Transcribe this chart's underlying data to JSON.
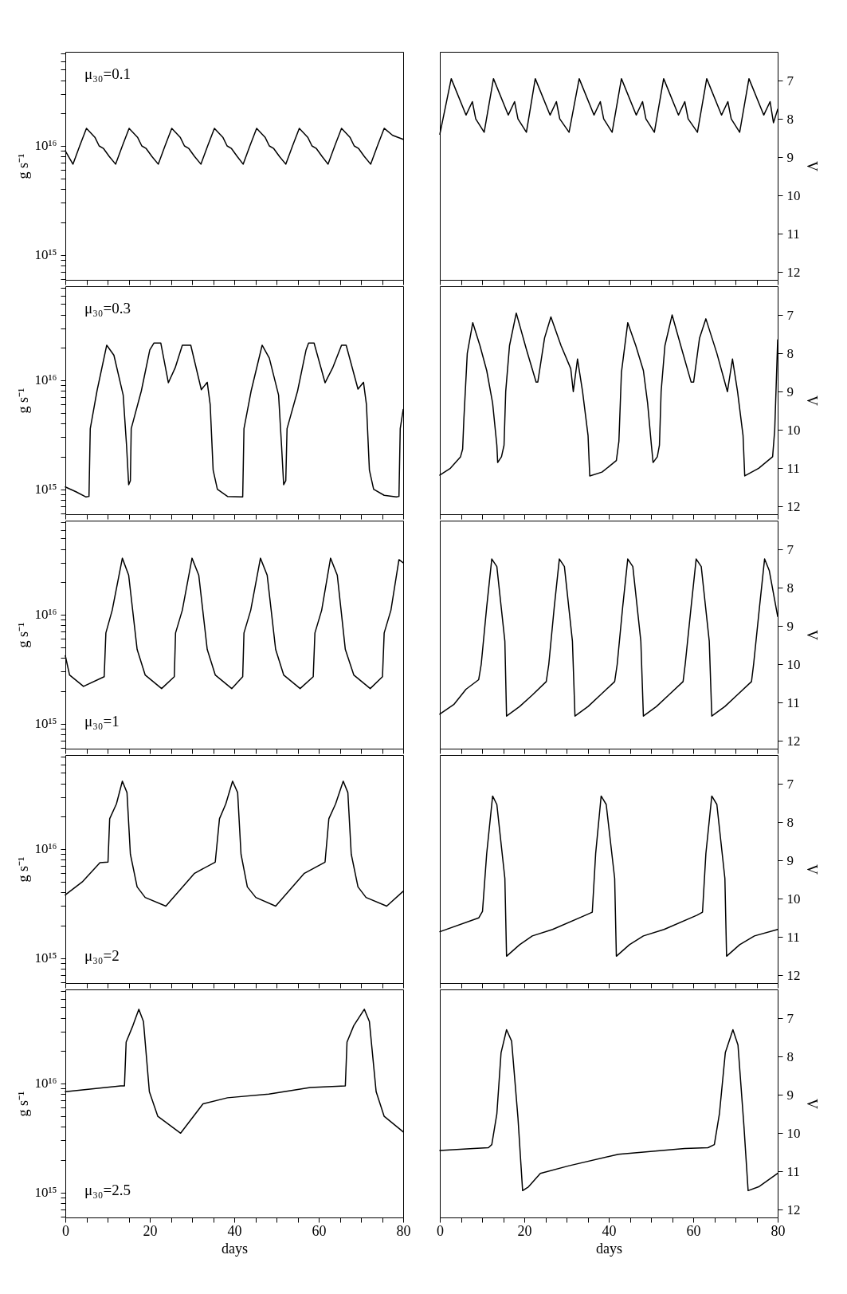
{
  "chart_data": [
    {
      "type": "line",
      "ylabel": "g s⁻¹",
      "log": true,
      "tick_labels": "y",
      "annotations": [
        "μ₃₀=0.1"
      ],
      "xlim": [
        0,
        80
      ],
      "xticks": [
        0,
        {
          "value": 5,
          "label": null
        },
        {
          "value": 10,
          "label": null
        },
        {
          "value": 15,
          "label": null
        },
        20,
        {
          "value": 25,
          "label": null
        },
        {
          "value": 30,
          "label": null
        },
        {
          "value": 35,
          "label": null
        },
        40,
        {
          "value": 45,
          "label": null
        },
        {
          "value": 50,
          "label": null
        },
        {
          "value": 55,
          "label": null
        },
        60,
        {
          "value": 65,
          "label": null
        },
        {
          "value": 70,
          "label": null
        },
        {
          "value": 75,
          "label": null
        },
        80
      ],
      "ylim": [
        590000000000000.0,
        7.3e+16
      ],
      "yticks": [
        {
          "value": 600000000000000.0,
          "label": null
        },
        {
          "value": 700000000000000.0,
          "label": null
        },
        {
          "value": 800000000000000.0,
          "label": null
        },
        {
          "value": 900000000000000.0,
          "label": null
        },
        {
          "value": 1000000000000000.0,
          "label": "10¹⁵"
        },
        {
          "value": 2000000000000000.0,
          "label": null
        },
        {
          "value": 3000000000000000.0,
          "label": null
        },
        {
          "value": 4000000000000000.0,
          "label": null
        },
        {
          "value": 5000000000000000.0,
          "label": null
        },
        {
          "value": 6000000000000000.0,
          "label": null
        },
        {
          "value": 7000000000000000.0,
          "label": null
        },
        {
          "value": 8000000000000000.0,
          "label": null
        },
        {
          "value": 9000000000000000.0,
          "label": null
        },
        {
          "value": 1e+16,
          "label": "10¹⁶"
        },
        {
          "value": 2e+16,
          "label": null
        },
        {
          "value": 3e+16,
          "label": null
        },
        {
          "value": 4e+16,
          "label": null
        },
        {
          "value": 5e+16,
          "label": null
        },
        {
          "value": 6e+16,
          "label": null
        },
        {
          "value": 7e+16,
          "label": null
        }
      ],
      "x": [
        0,
        1.8,
        3.4,
        5,
        7,
        8,
        9,
        10.4,
        11.9,
        13.5,
        15.1,
        17.1,
        18.1,
        19.1,
        20.5,
        22,
        23.6,
        25.2,
        27.2,
        28.2,
        29.2,
        30.6,
        32.1,
        33.7,
        35.3,
        37.3,
        38.3,
        39.3,
        40.7,
        42.1,
        43.7,
        45.3,
        47.3,
        48.3,
        49.3,
        50.7,
        52.2,
        53.8,
        55.4,
        57.4,
        58.4,
        59.4,
        60.8,
        62.2,
        63.8,
        65.4,
        67.4,
        68.4,
        69.4,
        70.8,
        72.3,
        73.9,
        75.5,
        77.5,
        80
      ],
      "series": [
        {
          "color": "#000000",
          "values": [
            9000000000000000.0,
            6800000000000000.0,
            1e+16,
            1.45e+16,
            1.2e+16,
            1e+16,
            9500000000000000.0,
            8000000000000000.0,
            6800000000000000.0,
            1e+16,
            1.45e+16,
            1.2e+16,
            1e+16,
            9500000000000000.0,
            8000000000000000.0,
            6800000000000000.0,
            1e+16,
            1.45e+16,
            1.2e+16,
            1e+16,
            9500000000000000.0,
            8000000000000000.0,
            6800000000000000.0,
            1e+16,
            1.45e+16,
            1.2e+16,
            1e+16,
            9500000000000000.0,
            8000000000000000.0,
            6800000000000000.0,
            1e+16,
            1.45e+16,
            1.2e+16,
            1e+16,
            9500000000000000.0,
            8000000000000000.0,
            6800000000000000.0,
            1e+16,
            1.45e+16,
            1.2e+16,
            1e+16,
            9500000000000000.0,
            8000000000000000.0,
            6800000000000000.0,
            1e+16,
            1.45e+16,
            1.2e+16,
            1e+16,
            9500000000000000.0,
            8000000000000000.0,
            6800000000000000.0,
            1e+16,
            1.45e+16,
            1.25e+16,
            1.15e+16
          ]
        }
      ]
    },
    {
      "type": "line",
      "y2label": "V",
      "tick_labels": "y",
      "xlim": [
        0,
        80
      ],
      "xticks": [
        0,
        {
          "value": 5,
          "label": null
        },
        {
          "value": 10,
          "label": null
        },
        {
          "value": 15,
          "label": null
        },
        20,
        {
          "value": 25,
          "label": null
        },
        {
          "value": 30,
          "label": null
        },
        {
          "value": 35,
          "label": null
        },
        40,
        {
          "value": 45,
          "label": null
        },
        {
          "value": 50,
          "label": null
        },
        {
          "value": 55,
          "label": null
        },
        60,
        {
          "value": 65,
          "label": null
        },
        {
          "value": 70,
          "label": null
        },
        {
          "value": 75,
          "label": null
        },
        80
      ],
      "y2lim": [
        12.2,
        6.25
      ],
      "y2ticks": [
        7,
        8,
        9,
        10,
        11,
        12
      ],
      "x": [
        0,
        2.7,
        6.2,
        7.7,
        8.5,
        10.5,
        12.7,
        16.2,
        17.7,
        18.5,
        20.5,
        22.6,
        26.1,
        27.6,
        28.4,
        30.6,
        33,
        36.5,
        38,
        38.8,
        40.8,
        43,
        46.5,
        48,
        48.8,
        50.8,
        53,
        56.5,
        58,
        58.8,
        61,
        63.2,
        66.7,
        68.2,
        69,
        71,
        73.2,
        76.7,
        78.2,
        79,
        80
      ],
      "series": [
        {
          "color": "#000000",
          "axis": "y2",
          "values": [
            8.4,
            6.95,
            7.9,
            7.55,
            8.0,
            8.35,
            6.95,
            7.9,
            7.55,
            8.0,
            8.35,
            6.95,
            7.9,
            7.55,
            8.0,
            8.35,
            6.95,
            7.9,
            7.55,
            8.0,
            8.35,
            6.95,
            7.9,
            7.55,
            8.0,
            8.35,
            6.95,
            7.9,
            7.55,
            8.0,
            8.35,
            6.95,
            7.9,
            7.55,
            8.0,
            8.35,
            6.95,
            7.9,
            7.55,
            8.1,
            7.75
          ]
        }
      ]
    },
    {
      "type": "line",
      "ylabel": "g s⁻¹",
      "log": true,
      "tick_labels": "y",
      "annotations": [
        "μ₃₀=0.3"
      ],
      "xlim": [
        0,
        80
      ],
      "xticks": [
        0,
        {
          "value": 5,
          "label": null
        },
        {
          "value": 10,
          "label": null
        },
        {
          "value": 15,
          "label": null
        },
        20,
        {
          "value": 25,
          "label": null
        },
        {
          "value": 30,
          "label": null
        },
        {
          "value": 35,
          "label": null
        },
        40,
        {
          "value": 45,
          "label": null
        },
        {
          "value": 50,
          "label": null
        },
        {
          "value": 55,
          "label": null
        },
        60,
        {
          "value": 65,
          "label": null
        },
        {
          "value": 70,
          "label": null
        },
        {
          "value": 75,
          "label": null
        },
        80
      ],
      "ylim": [
        590000000000000.0,
        7.3e+16
      ],
      "yticks": [
        {
          "value": 600000000000000.0,
          "label": null
        },
        {
          "value": 700000000000000.0,
          "label": null
        },
        {
          "value": 800000000000000.0,
          "label": null
        },
        {
          "value": 900000000000000.0,
          "label": null
        },
        {
          "value": 1000000000000000.0,
          "label": "10¹⁵"
        },
        {
          "value": 2000000000000000.0,
          "label": null
        },
        {
          "value": 3000000000000000.0,
          "label": null
        },
        {
          "value": 4000000000000000.0,
          "label": null
        },
        {
          "value": 5000000000000000.0,
          "label": null
        },
        {
          "value": 6000000000000000.0,
          "label": null
        },
        {
          "value": 7000000000000000.0,
          "label": null
        },
        {
          "value": 8000000000000000.0,
          "label": null
        },
        {
          "value": 9000000000000000.0,
          "label": null
        },
        {
          "value": 1e+16,
          "label": "10¹⁶"
        },
        {
          "value": 2e+16,
          "label": null
        },
        {
          "value": 3e+16,
          "label": null
        },
        {
          "value": 4e+16,
          "label": null
        },
        {
          "value": 5e+16,
          "label": null
        },
        {
          "value": 6e+16,
          "label": null
        },
        {
          "value": 7e+16,
          "label": null
        }
      ],
      "x": [
        0,
        2.5,
        4.9,
        5.6,
        5.9,
        7.5,
        9.8,
        11.5,
        13.7,
        14.5,
        15,
        15.4,
        15.6,
        18,
        20,
        21,
        22.6,
        24.4,
        26,
        27.7,
        29.7,
        32.2,
        33.6,
        34.3,
        35,
        36,
        38.4,
        42,
        42.3,
        44,
        46.6,
        48.3,
        50.5,
        51.2,
        51.7,
        52.2,
        52.5,
        55,
        57,
        57.6,
        58.9,
        61.5,
        63.3,
        65.4,
        66.5,
        69.3,
        70.6,
        71.3,
        72,
        73,
        75.5,
        78.4,
        79,
        79.3,
        80
      ],
      "series": [
        {
          "color": "#000000",
          "values": [
            1050000000000000.0,
            950000000000000.0,
            850000000000000.0,
            860000000000000.0,
            3600000000000000.0,
            8000000000000000.0,
            2.1e+16,
            1.7e+16,
            7300000000000000.0,
            2500000000000000.0,
            1100000000000000.0,
            1200000000000000.0,
            3600000000000000.0,
            8000000000000000.0,
            1.9e+16,
            2.2e+16,
            2.2e+16,
            9500000000000000.0,
            1.3e+16,
            2.1e+16,
            2.1e+16,
            8200000000000000.0,
            9600000000000000.0,
            6000000000000000.0,
            1500000000000000.0,
            1000000000000000.0,
            860000000000000.0,
            850000000000000.0,
            3600000000000000.0,
            8000000000000000.0,
            2.1e+16,
            1.6e+16,
            7300000000000000.0,
            2500000000000000.0,
            1100000000000000.0,
            1200000000000000.0,
            3600000000000000.0,
            8000000000000000.0,
            1.9e+16,
            2.2e+16,
            2.2e+16,
            9500000000000000.0,
            1.3e+16,
            2.1e+16,
            2.1e+16,
            8300000000000000.0,
            9600000000000000.0,
            6000000000000000.0,
            1500000000000000.0,
            1000000000000000.0,
            880000000000000.0,
            850000000000000.0,
            860000000000000.0,
            3600000000000000.0,
            5400000000000000.0
          ]
        }
      ]
    },
    {
      "type": "line",
      "y2label": "V",
      "tick_labels": "y",
      "xlim": [
        0,
        80
      ],
      "xticks": [
        0,
        {
          "value": 5,
          "label": null
        },
        {
          "value": 10,
          "label": null
        },
        {
          "value": 15,
          "label": null
        },
        20,
        {
          "value": 25,
          "label": null
        },
        {
          "value": 30,
          "label": null
        },
        {
          "value": 35,
          "label": null
        },
        40,
        {
          "value": 45,
          "label": null
        },
        {
          "value": 50,
          "label": null
        },
        {
          "value": 55,
          "label": null
        },
        60,
        {
          "value": 65,
          "label": null
        },
        {
          "value": 70,
          "label": null
        },
        {
          "value": 75,
          "label": null
        },
        80
      ],
      "y2lim": [
        12.2,
        6.25
      ],
      "y2ticks": [
        7,
        8,
        9,
        10,
        11,
        12
      ],
      "x": [
        0,
        2.5,
        4.9,
        5.4,
        5.7,
        6.5,
        7.8,
        9.5,
        11.1,
        12.5,
        13.5,
        13.7,
        14.6,
        15.2,
        15.6,
        16.5,
        18.1,
        20.5,
        22.8,
        23.2,
        24.8,
        26.3,
        28.7,
        31,
        31.6,
        32.6,
        33.8,
        35.1,
        35.5,
        38.4,
        41.8,
        42.4,
        43,
        44.5,
        46.4,
        48.2,
        49.2,
        50.1,
        50.5,
        51.5,
        52,
        52.4,
        53.3,
        55,
        57.3,
        59.5,
        60.1,
        61.5,
        63,
        65.6,
        68.1,
        69.3,
        70.5,
        71.8,
        72.2,
        75.5,
        78.8,
        79.3,
        80
      ],
      "series": [
        {
          "color": "#000000",
          "axis": "y2",
          "values": [
            11.18,
            11.0,
            10.7,
            10.5,
            9.7,
            8.0,
            7.2,
            7.8,
            8.45,
            9.3,
            10.4,
            10.85,
            10.7,
            10.4,
            9.0,
            7.8,
            6.95,
            7.9,
            8.75,
            8.75,
            7.6,
            7.05,
            7.8,
            8.4,
            9.0,
            8.15,
            9.0,
            10.15,
            11.2,
            11.1,
            10.8,
            10.3,
            8.5,
            7.2,
            7.8,
            8.45,
            9.3,
            10.4,
            10.85,
            10.7,
            10.4,
            9.0,
            7.8,
            7.0,
            7.9,
            8.75,
            8.75,
            7.6,
            7.1,
            8.0,
            9.0,
            8.15,
            9.0,
            10.15,
            11.2,
            11.0,
            10.7,
            10.0,
            7.65
          ]
        }
      ]
    },
    {
      "type": "line",
      "ylabel": "g s⁻¹",
      "log": true,
      "tick_labels": "y",
      "annotations": [
        "μ₃₀=1"
      ],
      "xlim": [
        0,
        80
      ],
      "xticks": [
        0,
        {
          "value": 5,
          "label": null
        },
        {
          "value": 10,
          "label": null
        },
        {
          "value": 15,
          "label": null
        },
        20,
        {
          "value": 25,
          "label": null
        },
        {
          "value": 30,
          "label": null
        },
        {
          "value": 35,
          "label": null
        },
        40,
        {
          "value": 45,
          "label": null
        },
        {
          "value": 50,
          "label": null
        },
        {
          "value": 55,
          "label": null
        },
        60,
        {
          "value": 65,
          "label": null
        },
        {
          "value": 70,
          "label": null
        },
        {
          "value": 75,
          "label": null
        },
        80
      ],
      "ylim": [
        590000000000000.0,
        7.3e+16
      ],
      "yticks": [
        {
          "value": 600000000000000.0,
          "label": null
        },
        {
          "value": 700000000000000.0,
          "label": null
        },
        {
          "value": 800000000000000.0,
          "label": null
        },
        {
          "value": 900000000000000.0,
          "label": null
        },
        {
          "value": 1000000000000000.0,
          "label": "10¹⁵"
        },
        {
          "value": 2000000000000000.0,
          "label": null
        },
        {
          "value": 3000000000000000.0,
          "label": null
        },
        {
          "value": 4000000000000000.0,
          "label": null
        },
        {
          "value": 5000000000000000.0,
          "label": null
        },
        {
          "value": 6000000000000000.0,
          "label": null
        },
        {
          "value": 7000000000000000.0,
          "label": null
        },
        {
          "value": 8000000000000000.0,
          "label": null
        },
        {
          "value": 9000000000000000.0,
          "label": null
        },
        {
          "value": 1e+16,
          "label": "10¹⁶"
        },
        {
          "value": 2e+16,
          "label": null
        },
        {
          "value": 3e+16,
          "label": null
        },
        {
          "value": 4e+16,
          "label": null
        },
        {
          "value": 5e+16,
          "label": null
        },
        {
          "value": 6e+16,
          "label": null
        },
        {
          "value": 7e+16,
          "label": null
        }
      ],
      "x": [
        0,
        1,
        4.3,
        9.2,
        9.6,
        11.1,
        13.5,
        15,
        17,
        18.9,
        22.8,
        25.8,
        26.1,
        27.7,
        30,
        31.6,
        33.6,
        35.5,
        39.4,
        42,
        42.3,
        43.9,
        46.2,
        47.8,
        49.8,
        51.7,
        55.6,
        58.7,
        59.1,
        60.7,
        62.8,
        64.4,
        66.3,
        68.3,
        72.2,
        75.1,
        75.5,
        77.1,
        79,
        80
      ],
      "series": [
        {
          "color": "#000000",
          "values": [
            4200000000000000.0,
            2800000000000000.0,
            2200000000000000.0,
            2700000000000000.0,
            6800000000000000.0,
            1.1e+16,
            3.3e+16,
            2.3e+16,
            4800000000000000.0,
            2800000000000000.0,
            2100000000000000.0,
            2700000000000000.0,
            6800000000000000.0,
            1.1e+16,
            3.3e+16,
            2.3e+16,
            4800000000000000.0,
            2800000000000000.0,
            2100000000000000.0,
            2700000000000000.0,
            6800000000000000.0,
            1.1e+16,
            3.3e+16,
            2.3e+16,
            4800000000000000.0,
            2800000000000000.0,
            2100000000000000.0,
            2700000000000000.0,
            6800000000000000.0,
            1.1e+16,
            3.3e+16,
            2.3e+16,
            4800000000000000.0,
            2800000000000000.0,
            2100000000000000.0,
            2700000000000000.0,
            6800000000000000.0,
            1.1e+16,
            3.2e+16,
            3e+16
          ]
        }
      ]
    },
    {
      "type": "line",
      "y2label": "V",
      "tick_labels": "y",
      "xlim": [
        0,
        80
      ],
      "xticks": [
        0,
        {
          "value": 5,
          "label": null
        },
        {
          "value": 10,
          "label": null
        },
        {
          "value": 15,
          "label": null
        },
        20,
        {
          "value": 25,
          "label": null
        },
        {
          "value": 30,
          "label": null
        },
        {
          "value": 35,
          "label": null
        },
        40,
        {
          "value": 45,
          "label": null
        },
        {
          "value": 50,
          "label": null
        },
        {
          "value": 55,
          "label": null
        },
        60,
        {
          "value": 65,
          "label": null
        },
        {
          "value": 70,
          "label": null
        },
        {
          "value": 75,
          "label": null
        },
        80
      ],
      "y2lim": [
        12.2,
        6.25
      ],
      "y2ticks": [
        7,
        8,
        9,
        10,
        11,
        12
      ],
      "x": [
        0,
        3.3,
        6.2,
        9.2,
        9.8,
        11.1,
        12.3,
        13.5,
        15.4,
        15.8,
        18.9,
        21.9,
        25.2,
        25.8,
        27.1,
        28.3,
        29.5,
        31.4,
        32,
        35.1,
        38,
        41.4,
        42,
        43.3,
        44.5,
        45.7,
        47.6,
        48.2,
        51.3,
        54.2,
        57.6,
        58.1,
        59.5,
        60.7,
        61.9,
        63.8,
        64.4,
        67.5,
        70.4,
        73.8,
        74.3,
        75.7,
        76.9,
        78,
        80
      ],
      "series": [
        {
          "color": "#000000",
          "axis": "y2",
          "values": [
            11.3,
            11.05,
            10.65,
            10.4,
            10.0,
            8.5,
            7.25,
            7.45,
            9.4,
            11.35,
            11.1,
            10.8,
            10.45,
            10.0,
            8.5,
            7.25,
            7.45,
            9.4,
            11.35,
            11.1,
            10.8,
            10.45,
            10.0,
            8.5,
            7.25,
            7.45,
            9.4,
            11.35,
            11.1,
            10.8,
            10.45,
            10.0,
            8.5,
            7.25,
            7.45,
            9.4,
            11.35,
            11.1,
            10.8,
            10.45,
            10.0,
            8.5,
            7.25,
            7.55,
            8.75
          ]
        }
      ]
    },
    {
      "type": "line",
      "ylabel": "g s⁻¹",
      "log": true,
      "tick_labels": "y",
      "annotations": [
        "μ₃₀=2"
      ],
      "xlim": [
        0,
        80
      ],
      "xticks": [
        0,
        {
          "value": 5,
          "label": null
        },
        {
          "value": 10,
          "label": null
        },
        {
          "value": 15,
          "label": null
        },
        20,
        {
          "value": 25,
          "label": null
        },
        {
          "value": 30,
          "label": null
        },
        {
          "value": 35,
          "label": null
        },
        40,
        {
          "value": 45,
          "label": null
        },
        {
          "value": 50,
          "label": null
        },
        {
          "value": 55,
          "label": null
        },
        60,
        {
          "value": 65,
          "label": null
        },
        {
          "value": 70,
          "label": null
        },
        {
          "value": 75,
          "label": null
        },
        80
      ],
      "ylim": [
        590000000000000.0,
        7.3e+16
      ],
      "yticks": [
        {
          "value": 600000000000000.0,
          "label": null
        },
        {
          "value": 700000000000000.0,
          "label": null
        },
        {
          "value": 800000000000000.0,
          "label": null
        },
        {
          "value": 900000000000000.0,
          "label": null
        },
        {
          "value": 1000000000000000.0,
          "label": "10¹⁵"
        },
        {
          "value": 2000000000000000.0,
          "label": null
        },
        {
          "value": 3000000000000000.0,
          "label": null
        },
        {
          "value": 4000000000000000.0,
          "label": null
        },
        {
          "value": 5000000000000000.0,
          "label": null
        },
        {
          "value": 6000000000000000.0,
          "label": null
        },
        {
          "value": 7000000000000000.0,
          "label": null
        },
        {
          "value": 8000000000000000.0,
          "label": null
        },
        {
          "value": 9000000000000000.0,
          "label": null
        },
        {
          "value": 1e+16,
          "label": "10¹⁶"
        },
        {
          "value": 2e+16,
          "label": null
        },
        {
          "value": 3e+16,
          "label": null
        },
        {
          "value": 4e+16,
          "label": null
        },
        {
          "value": 5e+16,
          "label": null
        },
        {
          "value": 6e+16,
          "label": null
        },
        {
          "value": 7e+16,
          "label": null
        }
      ],
      "x": [
        0,
        4,
        8.2,
        10.1,
        10.5,
        12.1,
        13.5,
        14.6,
        15.4,
        17,
        18.9,
        23.8,
        30.6,
        35.5,
        36.5,
        38,
        39.6,
        40.8,
        41.6,
        43.1,
        45.1,
        49.8,
        56.6,
        61.5,
        62.4,
        64,
        65.8,
        66.9,
        67.7,
        69.3,
        71.2,
        76.1,
        80
      ],
      "series": [
        {
          "color": "#000000",
          "values": [
            3800000000000000.0,
            5000000000000000.0,
            7500000000000000.0,
            7600000000000000.0,
            1.9e+16,
            2.6e+16,
            4.2e+16,
            3.3e+16,
            9000000000000000.0,
            4500000000000000.0,
            3600000000000000.0,
            3000000000000000.0,
            6000000000000000.0,
            7600000000000000.0,
            1.9e+16,
            2.6e+16,
            4.2e+16,
            3.3e+16,
            9000000000000000.0,
            4500000000000000.0,
            3600000000000000.0,
            3000000000000000.0,
            6000000000000000.0,
            7600000000000000.0,
            1.9e+16,
            2.6e+16,
            4.2e+16,
            3.3e+16,
            9000000000000000.0,
            4500000000000000.0,
            3600000000000000.0,
            3000000000000000.0,
            4100000000000000.0
          ]
        }
      ]
    },
    {
      "type": "line",
      "y2label": "V",
      "tick_labels": "y",
      "xlim": [
        0,
        80
      ],
      "xticks": [
        0,
        {
          "value": 5,
          "label": null
        },
        {
          "value": 10,
          "label": null
        },
        {
          "value": 15,
          "label": null
        },
        20,
        {
          "value": 25,
          "label": null
        },
        {
          "value": 30,
          "label": null
        },
        {
          "value": 35,
          "label": null
        },
        40,
        {
          "value": 45,
          "label": null
        },
        {
          "value": 50,
          "label": null
        },
        {
          "value": 55,
          "label": null
        },
        60,
        {
          "value": 65,
          "label": null
        },
        {
          "value": 70,
          "label": null
        },
        {
          "value": 75,
          "label": null
        },
        80
      ],
      "y2lim": [
        12.2,
        6.25
      ],
      "y2ticks": [
        7,
        8,
        9,
        10,
        11,
        12
      ],
      "x": [
        0,
        9.2,
        10.1,
        11.1,
        12.5,
        13.5,
        15.4,
        15.8,
        18.9,
        21.9,
        26.7,
        34.5,
        36.1,
        36.9,
        38.2,
        39.4,
        41.4,
        41.8,
        44.9,
        48.2,
        53.1,
        60.9,
        62.2,
        63,
        64.4,
        65.6,
        67.5,
        67.9,
        71,
        74.5,
        80
      ],
      "series": [
        {
          "color": "#000000",
          "axis": "y2",
          "values": [
            10.86,
            10.5,
            10.33,
            8.82,
            7.32,
            7.54,
            9.47,
            11.5,
            11.2,
            10.97,
            10.8,
            10.43,
            10.35,
            8.82,
            7.32,
            7.54,
            9.47,
            11.5,
            11.2,
            10.97,
            10.8,
            10.43,
            10.35,
            8.82,
            7.32,
            7.54,
            9.47,
            11.5,
            11.2,
            10.97,
            10.8
          ]
        }
      ]
    },
    {
      "type": "line",
      "ylabel": "g s⁻¹",
      "xlabel": "days",
      "log": true,
      "annotations": [
        "μ₃₀=2.5"
      ],
      "xlim": [
        0,
        80
      ],
      "xticks": [
        0,
        {
          "value": 5,
          "label": null
        },
        {
          "value": 10,
          "label": null
        },
        {
          "value": 15,
          "label": null
        },
        20,
        {
          "value": 25,
          "label": null
        },
        {
          "value": 30,
          "label": null
        },
        {
          "value": 35,
          "label": null
        },
        40,
        {
          "value": 45,
          "label": null
        },
        {
          "value": 50,
          "label": null
        },
        {
          "value": 55,
          "label": null
        },
        60,
        {
          "value": 65,
          "label": null
        },
        {
          "value": 70,
          "label": null
        },
        {
          "value": 75,
          "label": null
        },
        80
      ],
      "ylim": [
        590000000000000.0,
        7.3e+16
      ],
      "yticks": [
        {
          "value": 600000000000000.0,
          "label": null
        },
        {
          "value": 700000000000000.0,
          "label": null
        },
        {
          "value": 800000000000000.0,
          "label": null
        },
        {
          "value": 900000000000000.0,
          "label": null
        },
        {
          "value": 1000000000000000.0,
          "label": "10¹⁵"
        },
        {
          "value": 2000000000000000.0,
          "label": null
        },
        {
          "value": 3000000000000000.0,
          "label": null
        },
        {
          "value": 4000000000000000.0,
          "label": null
        },
        {
          "value": 5000000000000000.0,
          "label": null
        },
        {
          "value": 6000000000000000.0,
          "label": null
        },
        {
          "value": 7000000000000000.0,
          "label": null
        },
        {
          "value": 8000000000000000.0,
          "label": null
        },
        {
          "value": 9000000000000000.0,
          "label": null
        },
        {
          "value": 1e+16,
          "label": "10¹⁶"
        },
        {
          "value": 2e+16,
          "label": null
        },
        {
          "value": 3e+16,
          "label": null
        },
        {
          "value": 4e+16,
          "label": null
        },
        {
          "value": 5e+16,
          "label": null
        },
        {
          "value": 6e+16,
          "label": null
        },
        {
          "value": 7e+16,
          "label": null
        }
      ],
      "x": [
        0,
        13.1,
        14,
        14.4,
        16,
        17.4,
        18.5,
        19.9,
        21.9,
        27.3,
        32.6,
        38.4,
        48.2,
        58,
        66.3,
        66.7,
        68.3,
        70.8,
        72,
        73.6,
        75.5,
        80
      ],
      "series": [
        {
          "color": "#000000",
          "values": [
            8400000000000000.0,
            9500000000000000.0,
            9500000000000000.0,
            2.4e+16,
            3.4e+16,
            4.8e+16,
            3.7e+16,
            8400000000000000.0,
            5000000000000000.0,
            3500000000000000.0,
            6500000000000000.0,
            7400000000000000.0,
            8000000000000000.0,
            9200000000000000.0,
            9500000000000000.0,
            2.4e+16,
            3.4e+16,
            4.8e+16,
            3.7e+16,
            8400000000000000.0,
            5000000000000000.0,
            3600000000000000.0
          ]
        }
      ]
    },
    {
      "type": "line",
      "xlabel": "days",
      "y2label": "V",
      "xlim": [
        0,
        80
      ],
      "xticks": [
        0,
        {
          "value": 5,
          "label": null
        },
        {
          "value": 10,
          "label": null
        },
        {
          "value": 15,
          "label": null
        },
        20,
        {
          "value": 25,
          "label": null
        },
        {
          "value": 30,
          "label": null
        },
        {
          "value": 35,
          "label": null
        },
        40,
        {
          "value": 45,
          "label": null
        },
        {
          "value": 50,
          "label": null
        },
        {
          "value": 55,
          "label": null
        },
        60,
        {
          "value": 65,
          "label": null
        },
        {
          "value": 70,
          "label": null
        },
        {
          "value": 75,
          "label": null
        },
        80
      ],
      "y2lim": [
        12.2,
        6.25
      ],
      "y2ticks": [
        7,
        8,
        9,
        10,
        11,
        12
      ],
      "x": [
        0,
        8,
        11.5,
        12.3,
        13.5,
        14.5,
        15.8,
        17,
        18.5,
        19.6,
        21,
        23.8,
        30.6,
        42.3,
        58,
        63.5,
        65,
        66.2,
        67.6,
        69.4,
        70.6,
        72,
        73,
        75.5,
        80
      ],
      "series": [
        {
          "color": "#000000",
          "axis": "y2",
          "values": [
            10.45,
            10.4,
            10.38,
            10.3,
            9.5,
            7.9,
            7.3,
            7.6,
            9.6,
            11.5,
            11.4,
            11.05,
            10.85,
            10.55,
            10.4,
            10.38,
            10.3,
            9.5,
            7.9,
            7.3,
            7.7,
            9.8,
            11.5,
            11.4,
            11.05
          ]
        }
      ]
    }
  ]
}
